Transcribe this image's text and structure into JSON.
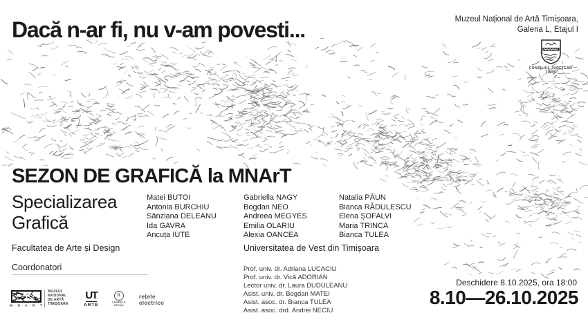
{
  "header": {
    "title": "Dacă n-ar fi, nu v-am povesti...",
    "venue_line1": "Muzeul Național de Artă Timișoara,",
    "venue_line2": "Galeria L, Etajul I",
    "council_line1": "CONSILIUL JUDEȚEAN",
    "council_line2": "TIMIȘ"
  },
  "main": {
    "season_title": "SEZON DE GRAFICĂ la MNArT",
    "specialization_line1": "Specializarea",
    "specialization_line2": "Grafică",
    "faculty": "Facultatea de Arte și Design",
    "coordinators_label": "Coordonatori",
    "university": "Universitatea de Vest din Timișoara",
    "students": {
      "column1": [
        "Matei BUTOI",
        "Antonia BURCHIU",
        "Sânziana DELEANU",
        "Ida GAVRA",
        "Ancuța IUTE"
      ],
      "column2": [
        "Gabriella NAGY",
        "Bogdan NEO",
        "Andreea MEGYES",
        "Emilia OLARIU",
        "Alexia OANCEA"
      ],
      "column3": [
        "Natalia PĂUN",
        "Bianca RĂDULESCU",
        "Elena ȘOFALVI",
        "Maria TRINCA",
        "Bianca TULEA"
      ]
    },
    "coordinators": [
      "Prof. univ. dr. Adriana LUCACIU",
      "Prof. univ. dr. Vică ADORIAN",
      "Lector univ. dr. Laura DUDULEANU",
      "Asist. univ. dr. Bogdan MATEI",
      "Asist. asoc. dr. Bianca TULEA",
      "Asist. asoc. drd. Andrei NECIU"
    ]
  },
  "footer": {
    "opening": "Deschidere 8.10.2025, ora 18:00",
    "dates": "8.10—26.10.2025",
    "logos": {
      "mnart_caption": "M · N · A · R · T",
      "museum_line1": "MUZEUL",
      "museum_line2": "NAȚIONAL",
      "museum_line3": "DE ARTĂ",
      "museum_line4": "TIMIȘOARA",
      "uvt_monogram": "UT",
      "uvt_label": "ARTE",
      "recas_initial": "R",
      "recas_line1": "CRAMELE",
      "recas_line2": "RECAȘ",
      "retele_line1": "rețele",
      "retele_line2": "electrice"
    }
  },
  "colors": {
    "ink": "#1a1a1a",
    "scribble": "#6f6f6f",
    "background": "#ffffff"
  }
}
